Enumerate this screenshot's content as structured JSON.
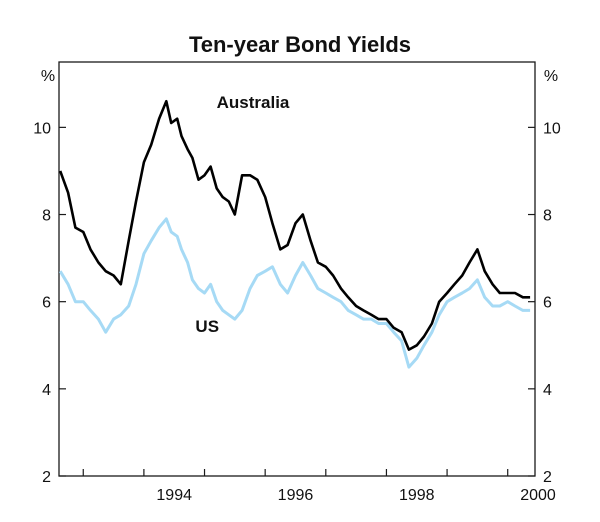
{
  "chart_data": {
    "type": "line",
    "title": "Ten-year Bond Yields",
    "y_unit_left": "%",
    "y_unit_right": "%",
    "ylim": [
      2,
      11.5
    ],
    "yticks": [
      2,
      4,
      6,
      8,
      10
    ],
    "ytick_labels": [
      "2",
      "4",
      "6",
      "8",
      "10"
    ],
    "xlim": [
      1992.6,
      2000.45
    ],
    "xticks": [
      1994,
      1996,
      1998,
      2000
    ],
    "xtick_labels": [
      "1994",
      "1996",
      "1998",
      "2000"
    ],
    "minor_xticks": [
      1993,
      1994,
      1995,
      1996,
      1997,
      1998,
      1999,
      2000
    ],
    "grid": false,
    "series": [
      {
        "name": "Australia",
        "color": "#000000",
        "x": [
          1992.62,
          1992.75,
          1992.87,
          1993.0,
          1993.12,
          1993.25,
          1993.37,
          1993.5,
          1993.62,
          1993.75,
          1993.87,
          1994.0,
          1994.12,
          1994.25,
          1994.37,
          1994.45,
          1994.55,
          1994.62,
          1994.72,
          1994.8,
          1994.9,
          1995.0,
          1995.1,
          1995.2,
          1995.3,
          1995.4,
          1995.5,
          1995.62,
          1995.75,
          1995.87,
          1996.0,
          1996.12,
          1996.25,
          1996.37,
          1996.5,
          1996.62,
          1996.75,
          1996.87,
          1997.0,
          1997.12,
          1997.25,
          1997.37,
          1997.5,
          1997.62,
          1997.75,
          1997.87,
          1998.0,
          1998.12,
          1998.25,
          1998.37,
          1998.5,
          1998.62,
          1998.75,
          1998.87,
          1999.0,
          1999.12,
          1999.25,
          1999.37,
          1999.5,
          1999.62,
          1999.75,
          1999.87,
          2000.0,
          2000.12,
          2000.25,
          2000.37
        ],
        "y": [
          9.0,
          8.5,
          7.7,
          7.6,
          7.2,
          6.9,
          6.7,
          6.6,
          6.4,
          7.4,
          8.3,
          9.2,
          9.6,
          10.2,
          10.6,
          10.1,
          10.2,
          9.8,
          9.5,
          9.3,
          8.8,
          8.9,
          9.1,
          8.6,
          8.4,
          8.3,
          8.0,
          8.9,
          8.9,
          8.8,
          8.4,
          7.8,
          7.2,
          7.3,
          7.8,
          8.0,
          7.4,
          6.9,
          6.8,
          6.6,
          6.3,
          6.1,
          5.9,
          5.8,
          5.7,
          5.6,
          5.6,
          5.4,
          5.3,
          4.9,
          5.0,
          5.2,
          5.5,
          6.0,
          6.2,
          6.4,
          6.6,
          6.9,
          7.2,
          6.7,
          6.4,
          6.2,
          6.2,
          6.2,
          6.1,
          6.1
        ]
      },
      {
        "name": "US",
        "color": "#a6daf5",
        "x": [
          1992.62,
          1992.75,
          1992.87,
          1993.0,
          1993.12,
          1993.25,
          1993.37,
          1993.5,
          1993.62,
          1993.75,
          1993.87,
          1994.0,
          1994.12,
          1994.25,
          1994.37,
          1994.45,
          1994.55,
          1994.62,
          1994.72,
          1994.8,
          1994.9,
          1995.0,
          1995.1,
          1995.2,
          1995.3,
          1995.4,
          1995.5,
          1995.62,
          1995.75,
          1995.87,
          1996.0,
          1996.12,
          1996.25,
          1996.37,
          1996.5,
          1996.62,
          1996.75,
          1996.87,
          1997.0,
          1997.12,
          1997.25,
          1997.37,
          1997.5,
          1997.62,
          1997.75,
          1997.87,
          1998.0,
          1998.12,
          1998.25,
          1998.37,
          1998.5,
          1998.62,
          1998.75,
          1998.87,
          1999.0,
          1999.12,
          1999.25,
          1999.37,
          1999.5,
          1999.62,
          1999.75,
          1999.87,
          2000.0,
          2000.12,
          2000.25,
          2000.37
        ],
        "y": [
          6.7,
          6.4,
          6.0,
          6.0,
          5.8,
          5.6,
          5.3,
          5.6,
          5.7,
          5.9,
          6.4,
          7.1,
          7.4,
          7.7,
          7.9,
          7.6,
          7.5,
          7.2,
          6.9,
          6.5,
          6.3,
          6.2,
          6.4,
          6.0,
          5.8,
          5.7,
          5.6,
          5.8,
          6.3,
          6.6,
          6.7,
          6.8,
          6.4,
          6.2,
          6.6,
          6.9,
          6.6,
          6.3,
          6.2,
          6.1,
          6.0,
          5.8,
          5.7,
          5.6,
          5.6,
          5.5,
          5.5,
          5.3,
          5.1,
          4.5,
          4.7,
          5.0,
          5.3,
          5.7,
          6.0,
          6.1,
          6.2,
          6.3,
          6.5,
          6.1,
          5.9,
          5.9,
          6.0,
          5.9,
          5.8,
          5.8
        ]
      }
    ],
    "annotations": [
      {
        "text": "Australia",
        "x": 1995.2,
        "y": 10.45
      },
      {
        "text": "US",
        "x": 1994.85,
        "y": 5.3
      }
    ]
  }
}
